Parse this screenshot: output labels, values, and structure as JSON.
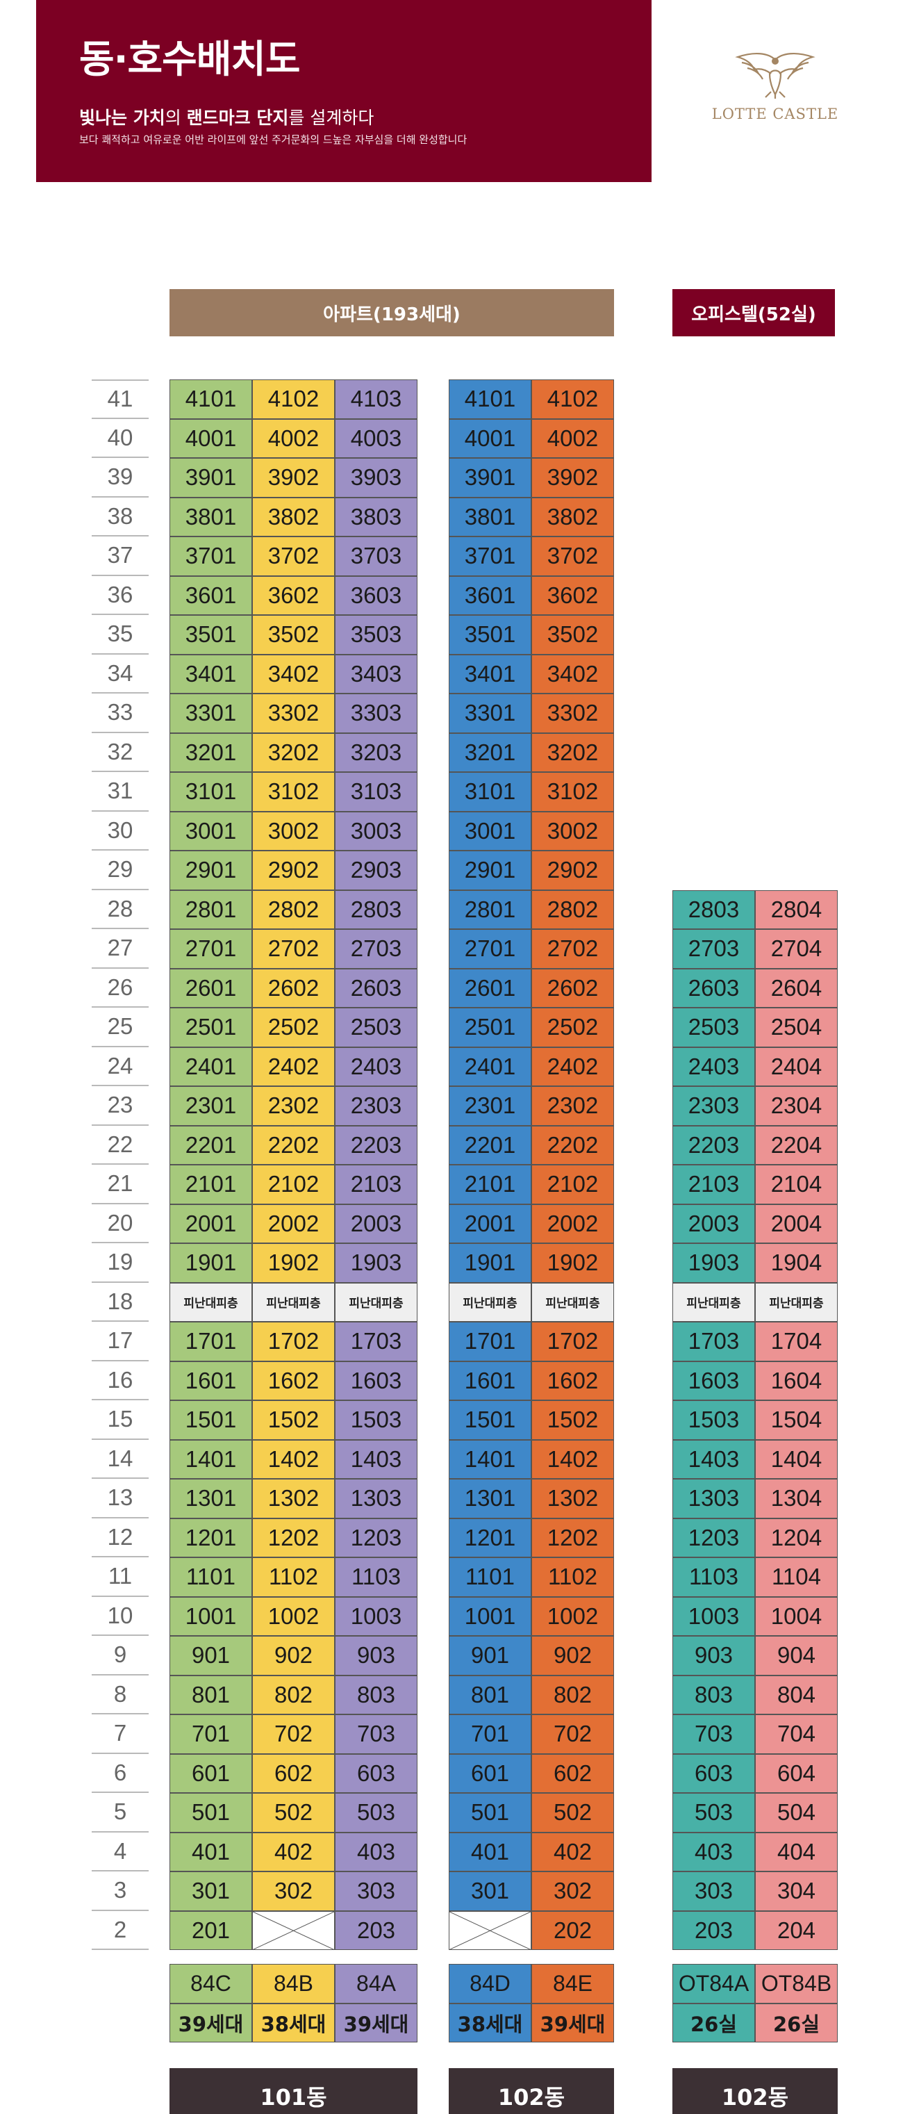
{
  "header": {
    "title": "동·호수배치도",
    "tagline_pre": "빛나는 가치",
    "tagline_mid1": "의 ",
    "tagline_strong": "랜드마크 단지",
    "tagline_post": "를 설계하다",
    "description": "보다 쾌적하고 여유로운 어반 라이프에 앞선 주거문화의 드높은 자부심을 더해 완성합니다"
  },
  "logo": {
    "text": "LOTTE CASTLE",
    "icon": "eagle-emblem-icon",
    "color": "#a48663"
  },
  "banners": {
    "apartment": "아파트(193세대)",
    "officetel": "오피스텔(52실)"
  },
  "colors": {
    "header_bg": "#7c0023",
    "apt_banner": "#9b7b61",
    "dong_label": "#3c3034",
    "line_84C": "#a6c97c",
    "line_84B": "#f6cf4f",
    "line_84A": "#9c90c5",
    "line_84D": "#3f88c9",
    "line_84E": "#e36f34",
    "line_OT84A": "#48b1a7",
    "line_OT84B": "#ec9393"
  },
  "floors": [
    "41",
    "40",
    "39",
    "38",
    "37",
    "36",
    "35",
    "34",
    "33",
    "32",
    "31",
    "30",
    "29",
    "28",
    "27",
    "26",
    "25",
    "24",
    "23",
    "22",
    "21",
    "20",
    "19",
    "18",
    "17",
    "16",
    "15",
    "14",
    "13",
    "12",
    "11",
    "10",
    "9",
    "8",
    "7",
    "6",
    "5",
    "4",
    "3",
    "2"
  ],
  "refuge_label": "피난대피층",
  "buildings": [
    {
      "id": "b101",
      "label": "101동",
      "columns": [
        {
          "line": "01",
          "type": "84C",
          "count": "39세대",
          "color": "#a6c97c",
          "units": [
            "4101",
            "4001",
            "3901",
            "3801",
            "3701",
            "3601",
            "3501",
            "3401",
            "3301",
            "3201",
            "3101",
            "3001",
            "2901",
            "2801",
            "2701",
            "2601",
            "2501",
            "2401",
            "2301",
            "2201",
            "2101",
            "2001",
            "1901",
            "피난대피층",
            "1701",
            "1601",
            "1501",
            "1401",
            "1301",
            "1201",
            "1101",
            "1001",
            "901",
            "801",
            "701",
            "601",
            "501",
            "401",
            "301",
            "201"
          ]
        },
        {
          "line": "02",
          "type": "84B",
          "count": "38세대",
          "color": "#f6cf4f",
          "units": [
            "4102",
            "4002",
            "3902",
            "3802",
            "3702",
            "3602",
            "3502",
            "3402",
            "3302",
            "3202",
            "3102",
            "3002",
            "2902",
            "2802",
            "2702",
            "2602",
            "2502",
            "2402",
            "2302",
            "2202",
            "2102",
            "2002",
            "1902",
            "피난대피층",
            "1702",
            "1602",
            "1502",
            "1402",
            "1302",
            "1202",
            "1102",
            "1002",
            "902",
            "802",
            "702",
            "602",
            "502",
            "402",
            "302",
            ""
          ]
        },
        {
          "line": "03",
          "type": "84A",
          "count": "39세대",
          "color": "#9c90c5",
          "units": [
            "4103",
            "4003",
            "3903",
            "3803",
            "3703",
            "3603",
            "3503",
            "3403",
            "3303",
            "3203",
            "3103",
            "3003",
            "2903",
            "2803",
            "2703",
            "2603",
            "2503",
            "2403",
            "2303",
            "2203",
            "2103",
            "2003",
            "1903",
            "피난대피층",
            "1703",
            "1603",
            "1503",
            "1403",
            "1303",
            "1203",
            "1103",
            "1003",
            "903",
            "803",
            "703",
            "603",
            "503",
            "403",
            "303",
            "203"
          ]
        }
      ]
    },
    {
      "id": "b102",
      "label": "102동",
      "columns": [
        {
          "line": "01",
          "type": "84D",
          "count": "38세대",
          "color": "#3f88c9",
          "units": [
            "4101",
            "4001",
            "3901",
            "3801",
            "3701",
            "3601",
            "3501",
            "3401",
            "3301",
            "3201",
            "3101",
            "3001",
            "2901",
            "2801",
            "2701",
            "2601",
            "2501",
            "2401",
            "2301",
            "2201",
            "2101",
            "2001",
            "1901",
            "피난대피층",
            "1701",
            "1601",
            "1501",
            "1401",
            "1301",
            "1201",
            "1101",
            "1001",
            "901",
            "801",
            "701",
            "601",
            "501",
            "401",
            "301",
            ""
          ]
        },
        {
          "line": "02",
          "type": "84E",
          "count": "39세대",
          "color": "#e36f34",
          "units": [
            "4102",
            "4002",
            "3902",
            "3802",
            "3702",
            "3602",
            "3502",
            "3402",
            "3302",
            "3202",
            "3102",
            "3002",
            "2902",
            "2802",
            "2702",
            "2602",
            "2502",
            "2402",
            "2302",
            "2202",
            "2102",
            "2002",
            "1902",
            "피난대피층",
            "1702",
            "1602",
            "1502",
            "1402",
            "1302",
            "1202",
            "1102",
            "1002",
            "902",
            "802",
            "702",
            "602",
            "502",
            "402",
            "302",
            "202"
          ]
        }
      ]
    },
    {
      "id": "b102o",
      "label": "102동",
      "columns": [
        {
          "line": "03",
          "type": "OT84A",
          "count": "26실",
          "color": "#48b1a7",
          "units": [
            "2803",
            "2703",
            "2603",
            "2503",
            "2403",
            "2303",
            "2203",
            "2103",
            "2003",
            "1903",
            "피난대피층",
            "1703",
            "1603",
            "1503",
            "1403",
            "1303",
            "1203",
            "1103",
            "1003",
            "903",
            "803",
            "703",
            "603",
            "503",
            "403",
            "303",
            "203"
          ]
        },
        {
          "line": "04",
          "type": "OT84B",
          "count": "26실",
          "color": "#ec9393",
          "units": [
            "2804",
            "2704",
            "2604",
            "2504",
            "2404",
            "2304",
            "2204",
            "2104",
            "2004",
            "1904",
            "피난대피층",
            "1704",
            "1604",
            "1504",
            "1404",
            "1304",
            "1204",
            "1104",
            "1004",
            "904",
            "804",
            "704",
            "604",
            "504",
            "404",
            "304",
            "204"
          ]
        }
      ]
    }
  ]
}
